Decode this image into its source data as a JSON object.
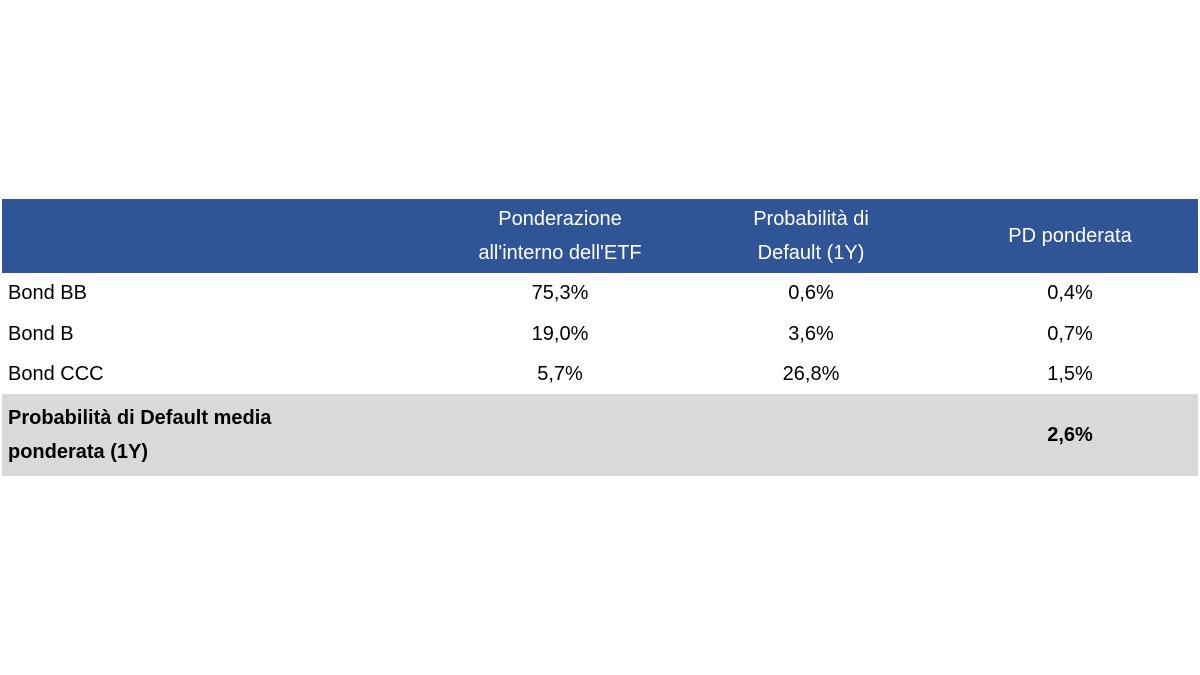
{
  "table": {
    "columns": [
      [
        "Ponderazione",
        "all'interno dell'ETF"
      ],
      [
        "Probabilità di",
        "Default (1Y)"
      ],
      [
        "PD ponderata"
      ]
    ],
    "rows": [
      [
        "Bond BB",
        "75,3%",
        "0,6%",
        "0,4%"
      ],
      [
        "Bond B",
        "19,0%",
        "3,6%",
        "0,7%"
      ],
      [
        "Bond CCC",
        "5,7%",
        "26,8%",
        "1,5%"
      ]
    ],
    "total": {
      "label": [
        "Probabilità di Default media",
        "ponderata (1Y)"
      ],
      "value": "2,6%"
    }
  }
}
